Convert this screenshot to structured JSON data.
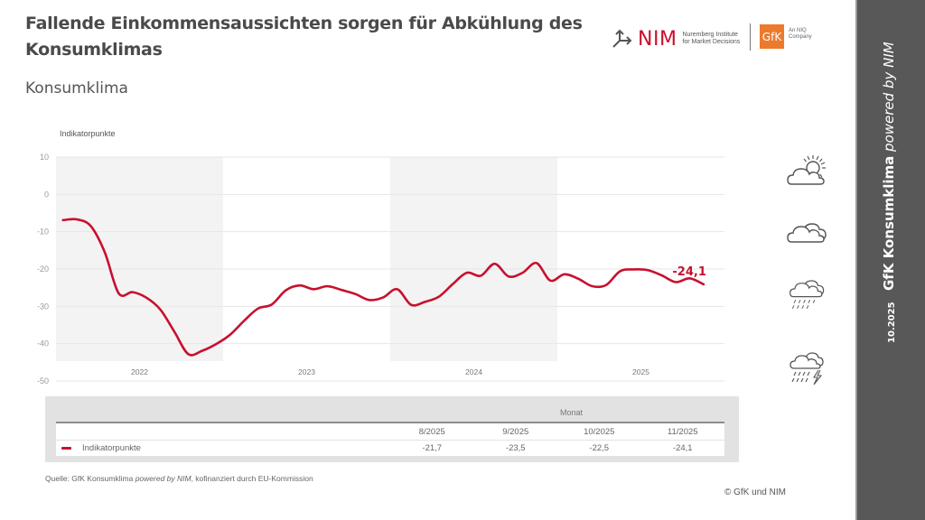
{
  "header": {
    "title": "Fallende Einkommensaussichten sorgen für Abkühlung des Konsumklimas",
    "subtitle": "Konsumklima",
    "nim_logo": {
      "word": "NIM",
      "line1": "Nuremberg Institute",
      "line2": "for Market Decisions",
      "icon": "arrow-split-icon"
    },
    "gfk_logo": {
      "word": "GfK",
      "line1": "An NIQ",
      "line2": "Company"
    }
  },
  "sidebar": {
    "brand": "GfK Konsumklima",
    "powered": "powered by NIM",
    "date": "10.2025"
  },
  "weather_icons": [
    "sun-behind-cloud-icon",
    "cloud-icon",
    "rain-cloud-icon",
    "thunderstorm-cloud-icon"
  ],
  "colors": {
    "line": "#c8102e",
    "band": "#f3f3f3",
    "sidebar": "#585858",
    "gfk": "#ec7a2c"
  },
  "chart_data": {
    "type": "line",
    "title": "Konsumklima",
    "ylabel": "Indikatorpunkte",
    "xlabel": "",
    "ylim": [
      -50,
      10
    ],
    "yticks": [
      10,
      0,
      -10,
      -20,
      -30,
      -40,
      -50
    ],
    "grid": true,
    "year_labels": [
      "2022",
      "2023",
      "2024",
      "2025"
    ],
    "shaded_years": [
      "2022",
      "2024"
    ],
    "end_label": "-24,1",
    "series": [
      {
        "name": "Indikatorpunkte",
        "x": [
          "1/2022",
          "2/2022",
          "3/2022",
          "4/2022",
          "5/2022",
          "6/2022",
          "7/2022",
          "8/2022",
          "9/2022",
          "10/2022",
          "11/2022",
          "12/2022",
          "1/2023",
          "2/2023",
          "3/2023",
          "4/2023",
          "5/2023",
          "6/2023",
          "7/2023",
          "8/2023",
          "9/2023",
          "10/2023",
          "11/2023",
          "12/2023",
          "1/2024",
          "2/2024",
          "3/2024",
          "4/2024",
          "5/2024",
          "6/2024",
          "7/2024",
          "8/2024",
          "9/2024",
          "10/2024",
          "11/2024",
          "12/2024",
          "1/2025",
          "2/2025",
          "3/2025",
          "4/2025",
          "5/2025",
          "6/2025",
          "7/2025",
          "8/2025",
          "9/2025",
          "10/2025",
          "11/2025"
        ],
        "values": [
          -6.9,
          -6.7,
          -8.5,
          -15.5,
          -26.5,
          -26.2,
          -27.7,
          -30.9,
          -36.8,
          -42.8,
          -41.9,
          -40.1,
          -37.6,
          -33.9,
          -30.6,
          -29.5,
          -25.7,
          -24.4,
          -25.4,
          -24.6,
          -25.6,
          -26.7,
          -28.3,
          -27.6,
          -25.4,
          -29.6,
          -28.8,
          -27.4,
          -24.0,
          -21.0,
          -21.8,
          -18.6,
          -22.0,
          -21.0,
          -18.4,
          -23.1,
          -21.4,
          -22.6,
          -24.6,
          -24.3,
          -20.6,
          -20.1,
          -20.3,
          -21.7,
          -23.5,
          -22.5,
          -24.1
        ]
      }
    ]
  },
  "table": {
    "group_header": "Monat",
    "columns": [
      "8/2025",
      "9/2025",
      "10/2025",
      "11/2025"
    ],
    "rows": [
      {
        "label": "Indikatorpunkte",
        "values": [
          "-21,7",
          "-23,5",
          "-22,5",
          "-24,1"
        ]
      }
    ]
  },
  "footer": {
    "source_prefix": "Quelle: GfK Konsumklima ",
    "source_italic": "powered by NIM",
    "source_suffix": ", kofinanziert durch EU-Kommission",
    "copyright": "© GfK und NIM"
  }
}
